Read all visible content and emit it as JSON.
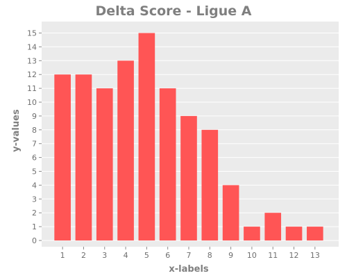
{
  "chart_data": {
    "type": "bar",
    "title": "Delta Score - Ligue A",
    "xlabel": "x-labels",
    "ylabel": "y-values",
    "categories": [
      "1",
      "2",
      "3",
      "4",
      "5",
      "6",
      "7",
      "8",
      "9",
      "10",
      "11",
      "12",
      "13"
    ],
    "values": [
      12,
      12,
      11,
      13,
      15,
      11,
      9,
      8,
      4,
      1,
      2,
      1,
      1
    ],
    "ylim": [
      0,
      15.9
    ],
    "yticks": [
      0,
      1,
      2,
      3,
      4,
      5,
      6,
      7,
      8,
      9,
      10,
      11,
      12,
      13,
      14,
      15
    ],
    "grid": true,
    "legend": "none",
    "colors": {
      "bar": "#ff5555",
      "plot_background": "#ebebeb",
      "grid": "#ffffff",
      "text": "#7f7f7f"
    }
  }
}
